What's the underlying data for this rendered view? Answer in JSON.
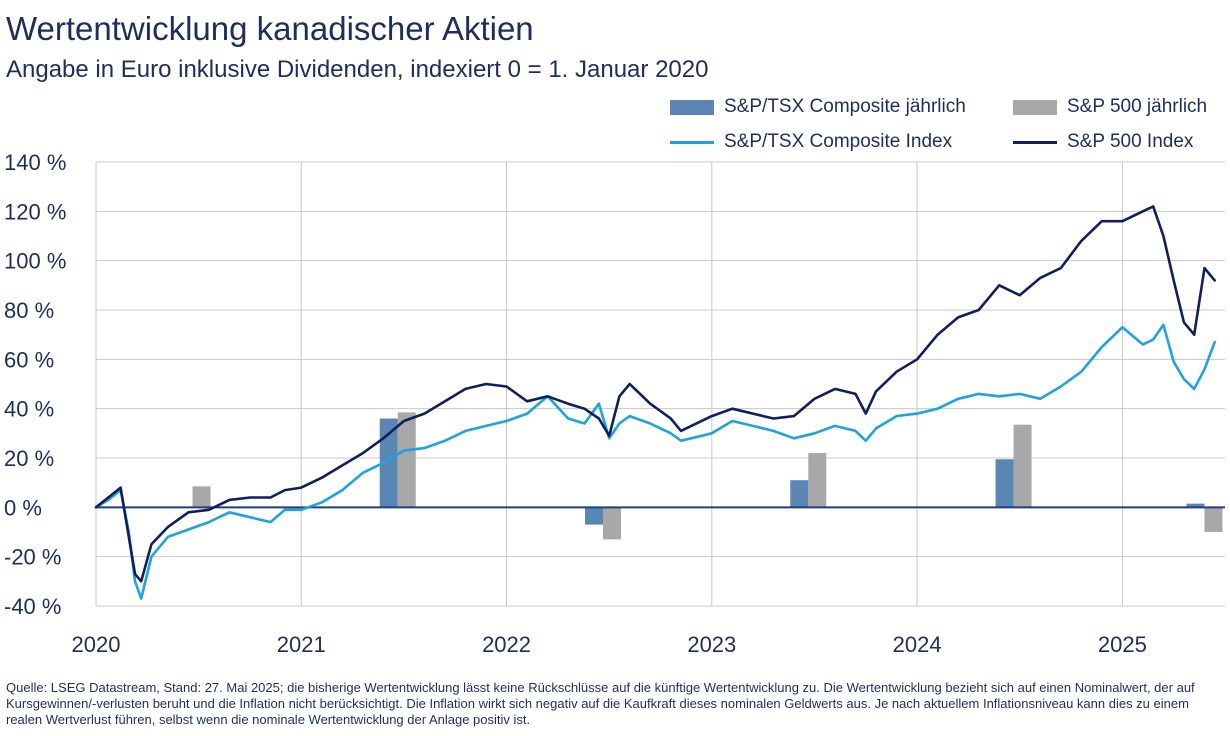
{
  "title": "Wertentwicklung kanadischer Aktien",
  "subtitle": "Angabe in Euro inklusive Dividenden, indexiert 0 = 1. Januar 2020",
  "legend": {
    "tsx_annual": "S&P/TSX Composite jährlich",
    "sp_annual": "S&P 500 jährlich",
    "tsx_index": "S&P/TSX Composite Index",
    "sp_index": "S&P 500 Index"
  },
  "source": "Quelle: LSEG Datastream, Stand: 27. Mai 2025; die bisherige Wertentwicklung lässt keine Rückschlüsse auf die künftige Wertentwicklung zu. Die Wertentwicklung bezieht sich auf einen Nominalwert, der auf Kursgewinnen/-verlusten beruht und die Inflation nicht berücksichtigt. Die Inflation wirkt sich negativ auf die Kaufkraft dieses nominalen Geldwerts aus. Je nach aktuellem Inflationsniveau kann dies zu einem realen Wertverlust führen, selbst wenn die nominale Wertentwicklung der Anlage positiv ist.",
  "colors": {
    "tsx_bar": "#5b86b4",
    "sp_bar": "#a8a8a8",
    "tsx_line": "#1fa3e0",
    "sp_line": "#0f1f5c",
    "text": "#1f2d5c",
    "grid": "#c8c8c8",
    "zero_line": "#1f3f7a"
  },
  "chart_data": {
    "type": "line",
    "ylim": [
      -40,
      140
    ],
    "xlim": [
      2020.0,
      2025.5
    ],
    "y_ticks": [
      -40,
      -20,
      0,
      20,
      40,
      60,
      80,
      100,
      120,
      140
    ],
    "y_tick_labels": [
      "-40 %",
      "-20 %",
      "0 %",
      "20 %",
      "40 %",
      "60 %",
      "80 %",
      "100 %",
      "120 %",
      "140 %"
    ],
    "x_ticks": [
      2020,
      2021,
      2022,
      2023,
      2024,
      2025
    ],
    "x_tick_labels": [
      "2020",
      "2021",
      "2022",
      "2023",
      "2024",
      "2025"
    ],
    "grid": true,
    "legend_position": "top-right",
    "bars": {
      "categories": [
        "2020",
        "2021",
        "2022",
        "2023",
        "2024",
        "2025"
      ],
      "series": [
        {
          "name": "S&P/TSX Composite jährlich",
          "values": [
            null,
            36,
            -7,
            11,
            19.5,
            1.5
          ]
        },
        {
          "name": "S&P 500 jährlich",
          "values": [
            8.5,
            38.5,
            -13,
            22,
            33.5,
            -10
          ]
        }
      ]
    },
    "lines": [
      {
        "name": "S&P/TSX Composite Index",
        "x": [
          2020.0,
          2020.06,
          2020.12,
          2020.16,
          2020.19,
          2020.22,
          2020.27,
          2020.35,
          2020.45,
          2020.55,
          2020.65,
          2020.75,
          2020.85,
          2020.92,
          2021.0,
          2021.1,
          2021.2,
          2021.3,
          2021.4,
          2021.5,
          2021.6,
          2021.7,
          2021.8,
          2021.9,
          2022.0,
          2022.1,
          2022.2,
          2022.3,
          2022.38,
          2022.45,
          2022.5,
          2022.55,
          2022.6,
          2022.7,
          2022.8,
          2022.85,
          2022.9,
          2023.0,
          2023.1,
          2023.2,
          2023.3,
          2023.4,
          2023.5,
          2023.6,
          2023.7,
          2023.75,
          2023.8,
          2023.9,
          2024.0,
          2024.1,
          2024.2,
          2024.3,
          2024.4,
          2024.5,
          2024.6,
          2024.7,
          2024.8,
          2024.9,
          2025.0,
          2025.1,
          2025.15,
          2025.2,
          2025.25,
          2025.3,
          2025.35,
          2025.4,
          2025.45
        ],
        "values": [
          0,
          3,
          7,
          -10,
          -30,
          -37,
          -20,
          -12,
          -9,
          -6,
          -2,
          -4,
          -6,
          -1,
          -1,
          2,
          7,
          14,
          18,
          23,
          24,
          27,
          31,
          33,
          35,
          38,
          45,
          36,
          34,
          42,
          28,
          34,
          37,
          34,
          30,
          27,
          28,
          30,
          35,
          33,
          31,
          28,
          30,
          33,
          31,
          27,
          32,
          37,
          38,
          40,
          44,
          46,
          45,
          46,
          44,
          49,
          55,
          65,
          73,
          66,
          68,
          74,
          59,
          52,
          48,
          56,
          67
        ]
      },
      {
        "name": "S&P 500 Index",
        "x": [
          2020.0,
          2020.06,
          2020.12,
          2020.16,
          2020.19,
          2020.22,
          2020.27,
          2020.35,
          2020.45,
          2020.55,
          2020.65,
          2020.75,
          2020.85,
          2020.92,
          2021.0,
          2021.1,
          2021.2,
          2021.3,
          2021.4,
          2021.5,
          2021.6,
          2021.7,
          2021.8,
          2021.9,
          2022.0,
          2022.1,
          2022.2,
          2022.3,
          2022.38,
          2022.45,
          2022.5,
          2022.55,
          2022.6,
          2022.7,
          2022.8,
          2022.85,
          2022.9,
          2023.0,
          2023.1,
          2023.2,
          2023.3,
          2023.4,
          2023.5,
          2023.6,
          2023.7,
          2023.75,
          2023.8,
          2023.9,
          2024.0,
          2024.1,
          2024.2,
          2024.3,
          2024.4,
          2024.5,
          2024.6,
          2024.7,
          2024.8,
          2024.9,
          2025.0,
          2025.1,
          2025.15,
          2025.2,
          2025.25,
          2025.3,
          2025.35,
          2025.4,
          2025.45
        ],
        "values": [
          0,
          4,
          8,
          -12,
          -27,
          -30,
          -15,
          -8,
          -2,
          -1,
          3,
          4,
          4,
          7,
          8,
          12,
          17,
          22,
          28,
          35,
          38,
          43,
          48,
          50,
          49,
          43,
          45,
          42,
          40,
          36,
          29,
          45,
          50,
          42,
          36,
          31,
          33,
          37,
          40,
          38,
          36,
          37,
          44,
          48,
          46,
          38,
          47,
          55,
          60,
          70,
          77,
          80,
          90,
          86,
          93,
          97,
          108,
          116,
          116,
          120,
          122,
          110,
          92,
          75,
          70,
          97,
          92
        ]
      }
    ]
  }
}
